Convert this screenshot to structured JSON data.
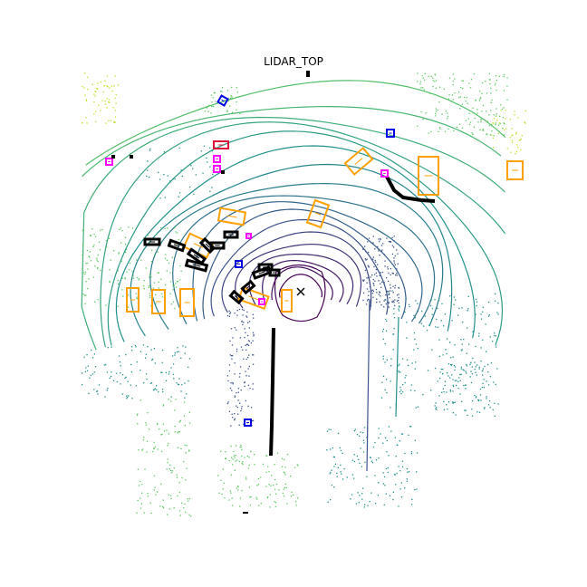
{
  "title": "LIDAR_TOP",
  "colors": {
    "ring_near": "#440154",
    "ring_mid": "#3b528b",
    "ring_far": "#21908d",
    "points_far": "#5dc863",
    "points_edge": "#bddf26",
    "car_box": "#ffa000",
    "barrier_box": "#000000",
    "pedestrian_box": "#0000e6",
    "cone_box": "#ff00ff",
    "bicycle_box": "#dc143c",
    "ego_marker": "#000000"
  },
  "legend_note": ""
}
